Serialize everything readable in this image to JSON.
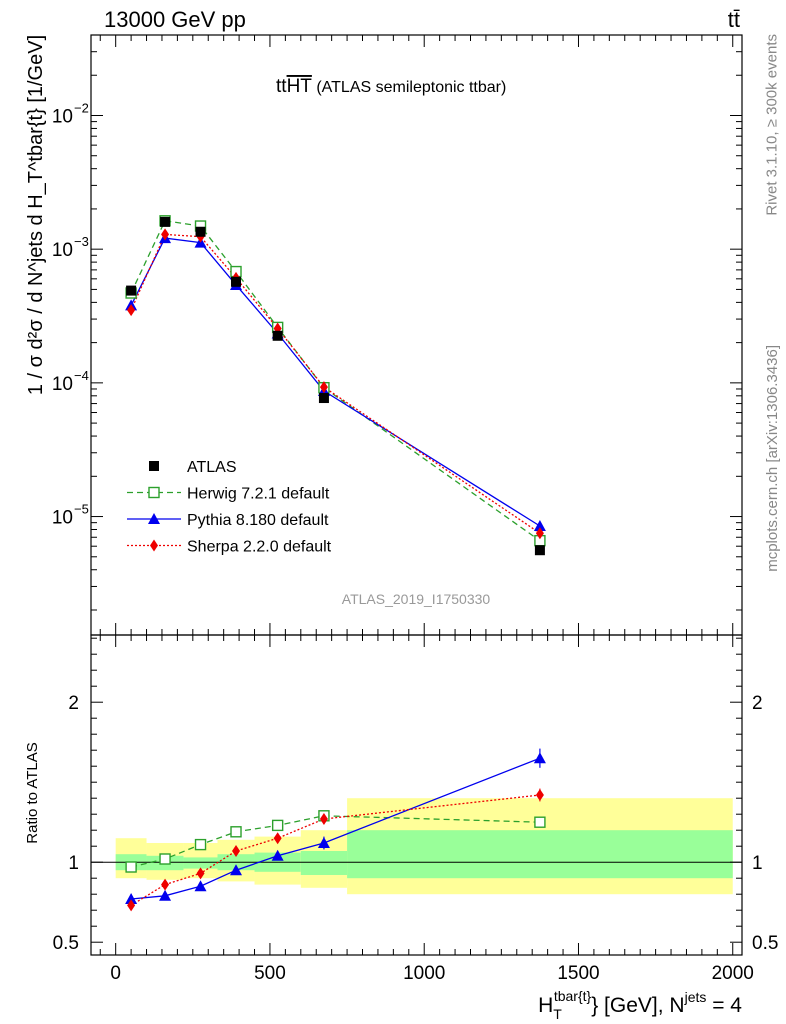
{
  "header": {
    "energy_label": "13000 GeV pp",
    "process_label": "tt̄"
  },
  "side_labels": {
    "rivet": "Rivet 3.1.10, ≥ 300k events",
    "mcplots": "mcplots.cern.ch [arXiv:1306.3436]"
  },
  "plot_title": {
    "main": "tt",
    "overline": "HT",
    "suffix": " (ATLAS semileptonic ttbar)"
  },
  "analysis_id": "ATLAS_2019_I1750330",
  "colors": {
    "herwig": "#2ca02c",
    "pythia": "#0000ee",
    "sherpa": "#ee0000",
    "data": "#000000",
    "band_inner": "#99ff99",
    "band_outer": "#ffff99"
  },
  "chart_data": [
    {
      "type": "scatter",
      "role": "main",
      "ylabel": "1 / σ d²σ / d N^jets d H_T^tbar{t} [1/GeV]",
      "yscale": "log",
      "ylim": [
        1.3e-06,
        0.04
      ],
      "xlim": [
        -80,
        2030
      ],
      "y_ticks": [
        {
          "value": 0.01,
          "label": "10",
          "exp": "−2"
        },
        {
          "value": 0.001,
          "label": "10",
          "exp": "−3"
        },
        {
          "value": 0.0001,
          "label": "10",
          "exp": "−4"
        },
        {
          "value": 1e-05,
          "label": "10",
          "exp": "−5"
        }
      ],
      "x": [
        50,
        160,
        275,
        390,
        525,
        675,
        1375
      ],
      "series": [
        {
          "name": "ATLAS",
          "marker": "square-filled",
          "values": [
            0.00049,
            0.0016,
            0.00135,
            0.00057,
            0.000225,
            7.7e-05,
            5.6e-06
          ]
        },
        {
          "name": "Herwig 7.2.1 default",
          "marker": "square-open",
          "line": "dashed",
          "values": [
            0.00047,
            0.00163,
            0.00149,
            0.00068,
            0.00026,
            9.2e-05,
            6.6e-06
          ]
        },
        {
          "name": "Pythia 8.180 default",
          "marker": "triangle",
          "line": "solid",
          "values": [
            0.00038,
            0.00121,
            0.00112,
            0.00054,
            0.000234,
            8.7e-05,
            8.5e-06
          ]
        },
        {
          "name": "Sherpa 2.2.0 default",
          "marker": "diamond",
          "line": "dotted",
          "values": [
            0.00035,
            0.00129,
            0.00124,
            0.00061,
            0.000255,
            9.3e-05,
            7.5e-06
          ]
        }
      ]
    },
    {
      "type": "scatter",
      "role": "ratio",
      "ylabel": "Ratio to ATLAS",
      "ylim": [
        0.42,
        2.42
      ],
      "xlim": [
        -80,
        2030
      ],
      "xlabel": "H_T^tbar{t} [GeV], N^jets = 4",
      "y_ticks": [
        {
          "value": 0.5,
          "label": "0.5"
        },
        {
          "value": 1,
          "label": "1"
        },
        {
          "value": 2,
          "label": "2"
        }
      ],
      "x_ticks": [
        {
          "value": 0,
          "label": "0"
        },
        {
          "value": 500,
          "label": "500"
        },
        {
          "value": 1000,
          "label": "1000"
        },
        {
          "value": 1500,
          "label": "1500"
        },
        {
          "value": 2000,
          "label": "2000"
        }
      ],
      "x": [
        50,
        160,
        275,
        390,
        525,
        675,
        1375
      ],
      "uncertainty_bins": {
        "edges": [
          0,
          100,
          220,
          330,
          450,
          600,
          750,
          2000
        ],
        "inner": [
          [
            0.95,
            1.05
          ],
          [
            0.95,
            1.04
          ],
          [
            0.96,
            1.03
          ],
          [
            0.95,
            1.05
          ],
          [
            0.94,
            1.06
          ],
          [
            0.92,
            1.07
          ],
          [
            0.9,
            1.2
          ]
        ],
        "outer": [
          [
            0.9,
            1.15
          ],
          [
            0.89,
            1.12
          ],
          [
            0.9,
            1.12
          ],
          [
            0.88,
            1.14
          ],
          [
            0.86,
            1.16
          ],
          [
            0.84,
            1.2
          ],
          [
            0.8,
            1.4
          ]
        ]
      },
      "series": [
        {
          "name": "Herwig 7.2.1 default",
          "values": [
            0.97,
            1.02,
            1.11,
            1.19,
            1.23,
            1.29,
            1.25
          ]
        },
        {
          "name": "Pythia 8.180 default",
          "values": [
            0.77,
            0.79,
            0.85,
            0.95,
            1.04,
            1.12,
            1.65
          ],
          "errors": [
            0.03,
            0.02,
            0.02,
            0.02,
            0.02,
            0.04,
            0.06
          ]
        },
        {
          "name": "Sherpa 2.2.0 default",
          "values": [
            0.73,
            0.86,
            0.93,
            1.07,
            1.15,
            1.27,
            1.42
          ],
          "errors": [
            0.02,
            0.02,
            0.02,
            0.02,
            0.02,
            0.03,
            0.04
          ]
        }
      ]
    }
  ]
}
